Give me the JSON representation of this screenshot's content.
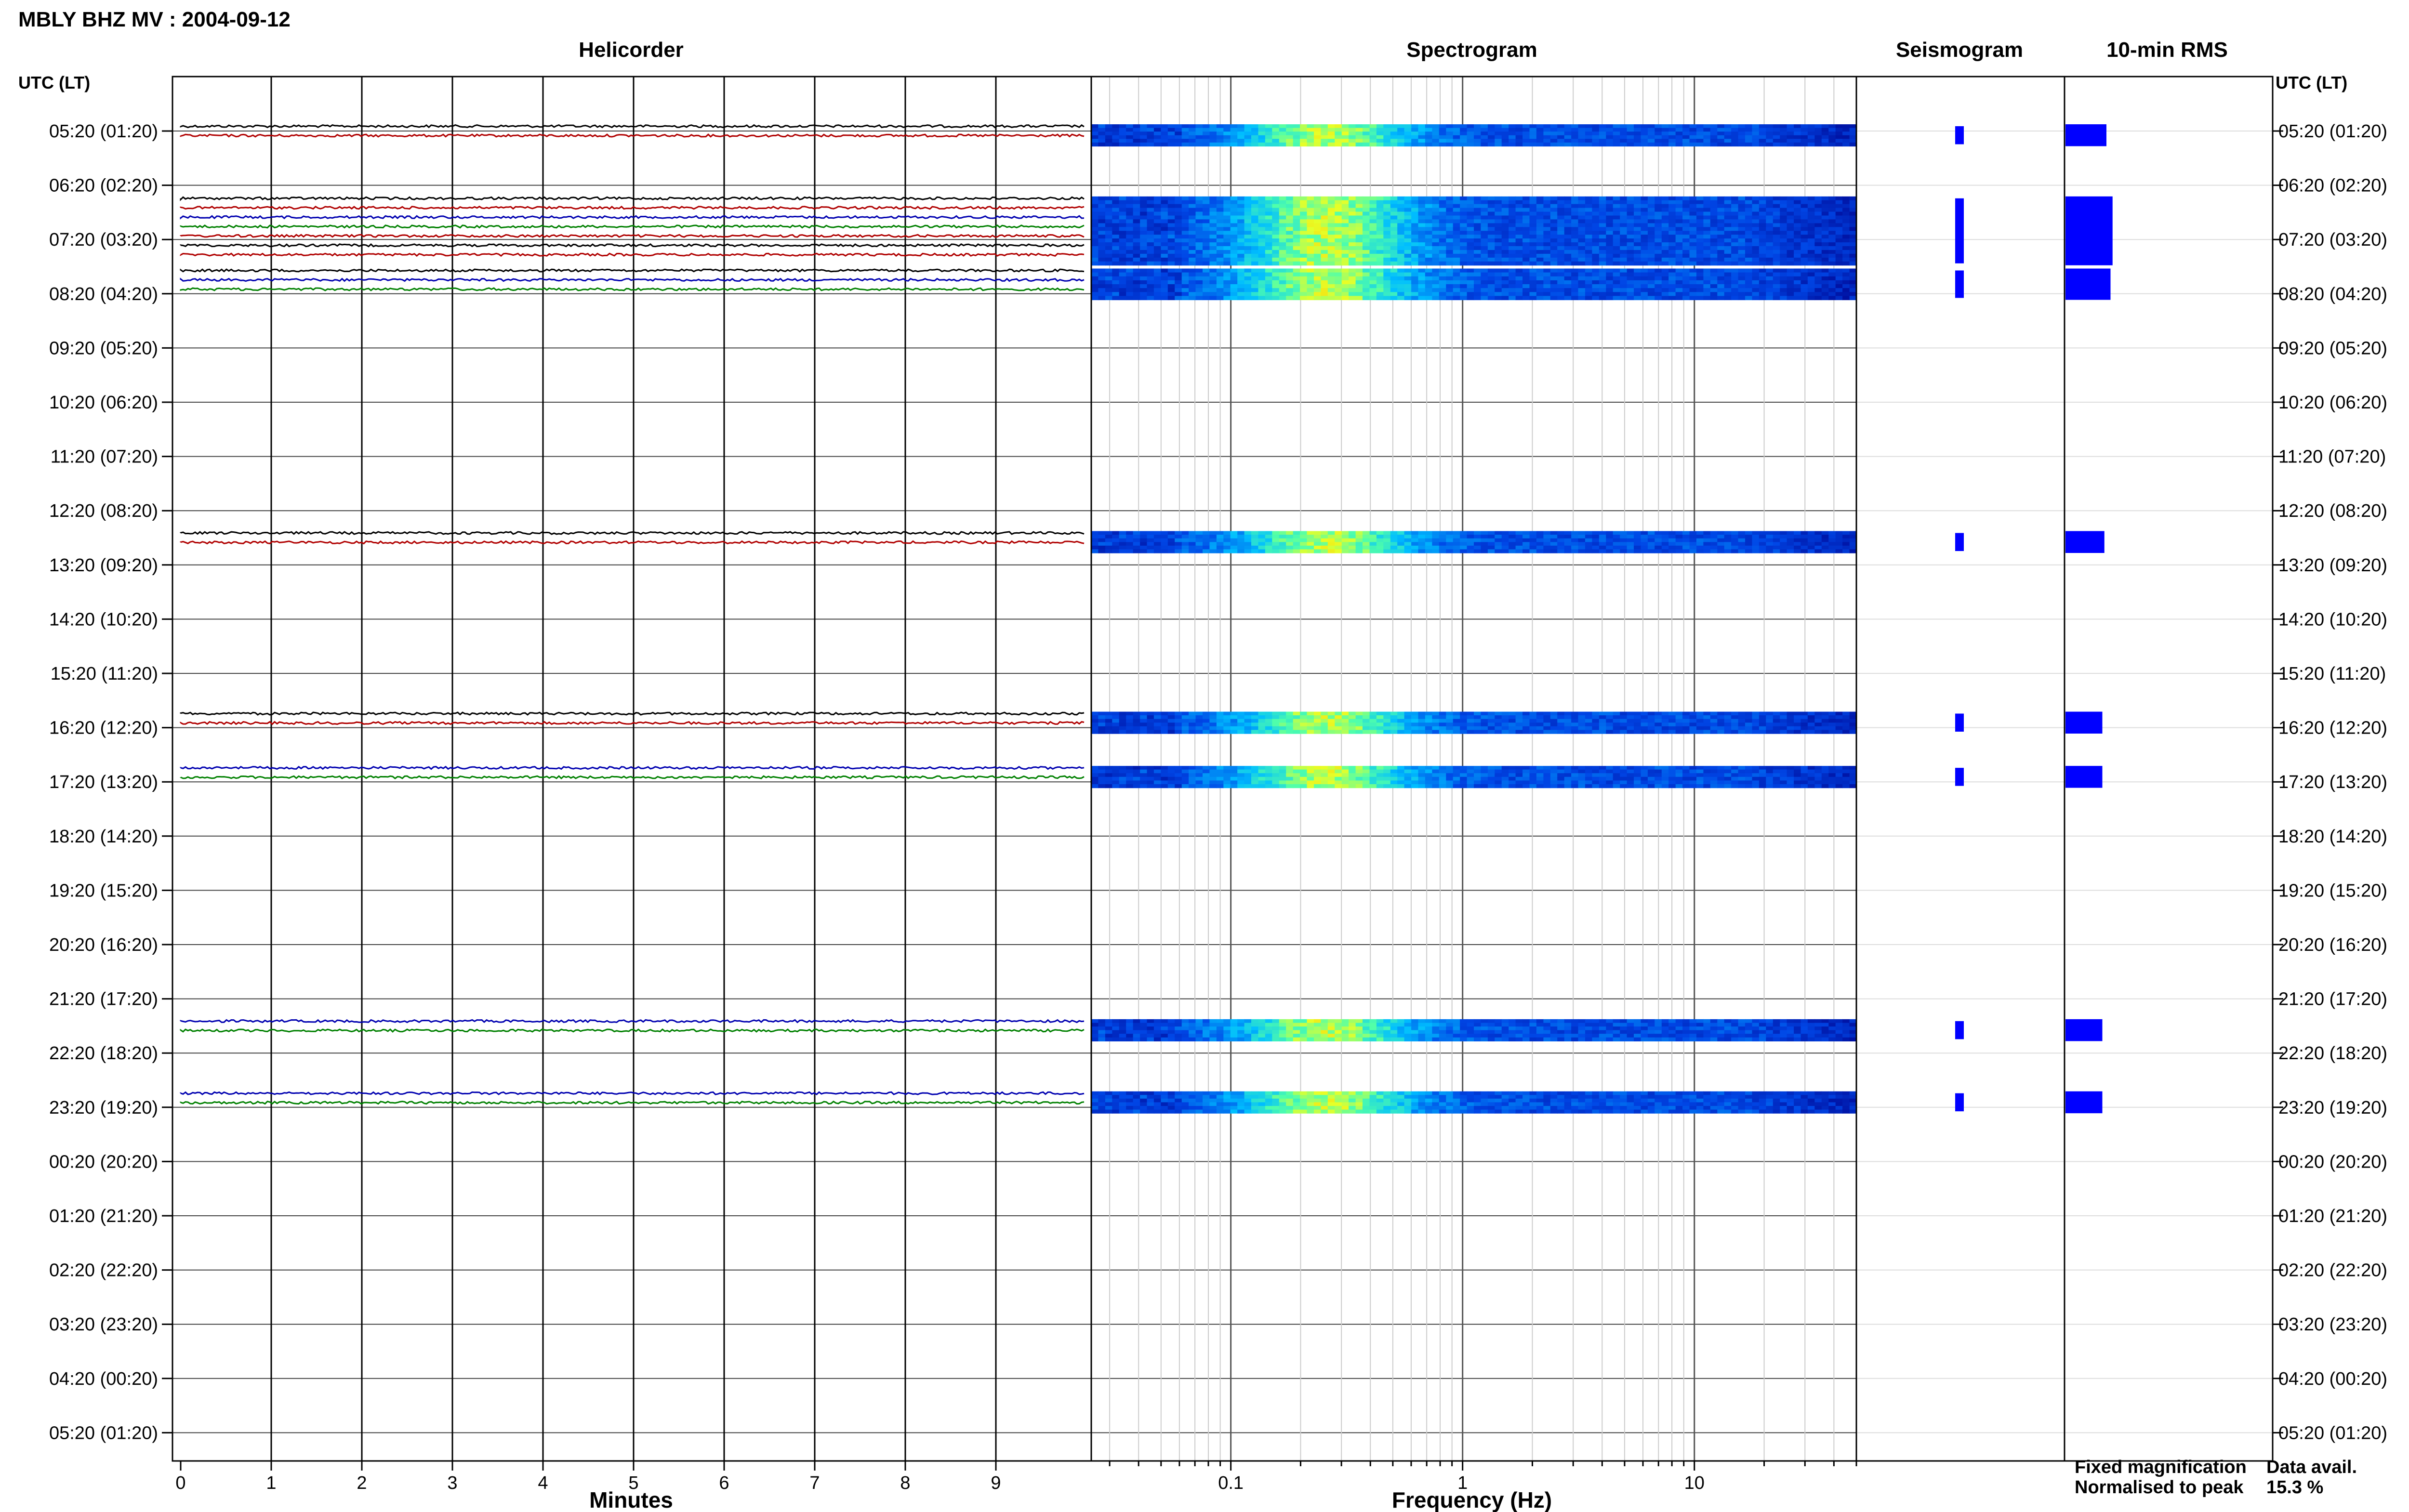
{
  "header": {
    "title": "MBLY BHZ MV : 2004-09-12",
    "utc_label_left": "UTC (LT)",
    "utc_label_right": "UTC (LT)"
  },
  "panels": {
    "helicorder": "Helicorder",
    "spectrogram": "Spectrogram",
    "seismogram": "Seismogram",
    "rms": "10-min RMS"
  },
  "xlabels": {
    "minutes": "Minutes",
    "frequency": "Frequency (Hz)"
  },
  "legend": {
    "fixed": "Fixed magnification",
    "normalised": "Normalised to peak",
    "fixed_color": "#0000ff",
    "normalised_color": "#ff0000"
  },
  "data_availability": {
    "label": "Data avail.",
    "value": "15.3 %"
  },
  "chart_data": {
    "type": "helicorder",
    "time_labels": [
      "05:20 (01:20)",
      "06:20 (02:20)",
      "07:20 (03:20)",
      "08:20 (04:20)",
      "09:20 (05:20)",
      "10:20 (06:20)",
      "11:20 (07:20)",
      "12:20 (08:20)",
      "13:20 (09:20)",
      "14:20 (10:20)",
      "15:20 (11:20)",
      "16:20 (12:20)",
      "17:20 (13:20)",
      "18:20 (14:20)",
      "19:20 (15:20)",
      "20:20 (16:20)",
      "21:20 (17:20)",
      "22:20 (18:20)",
      "23:20 (19:20)",
      "00:20 (20:20)",
      "01:20 (21:20)",
      "02:20 (22:20)",
      "03:20 (23:20)",
      "04:20 (00:20)",
      "05:20 (01:20)"
    ],
    "minutes_ticks": [
      "0",
      "1",
      "2",
      "3",
      "4",
      "5",
      "6",
      "7",
      "8",
      "9"
    ],
    "freq_ticks": [
      "0.1",
      "1",
      "10"
    ],
    "freq_range": [
      0.025,
      50
    ],
    "minutes_range": [
      0,
      10
    ],
    "trace_colors": [
      "#000000",
      "#b00000",
      "#0000b0",
      "#008000"
    ],
    "data_segments": [
      {
        "hour": 0,
        "traces": [
          0,
          1
        ],
        "rms": 1.0
      },
      {
        "hour": 1.33,
        "traces": [
          0,
          1,
          2,
          3,
          1,
          0,
          1
        ],
        "rms": 1.15
      },
      {
        "hour": 2.66,
        "traces": [
          0,
          2,
          3
        ],
        "rms": 1.1
      },
      {
        "hour": 7.5,
        "traces": [
          0,
          1
        ],
        "rms": 0.95
      },
      {
        "hour": 10.83,
        "traces": [
          0,
          1
        ],
        "rms": 0.9
      },
      {
        "hour": 11.83,
        "traces": [
          2,
          3
        ],
        "rms": 0.9
      },
      {
        "hour": 16.5,
        "traces": [
          2,
          3
        ],
        "rms": 0.9
      },
      {
        "hour": 17.83,
        "traces": [
          2,
          3
        ],
        "rms": 0.9
      }
    ]
  }
}
